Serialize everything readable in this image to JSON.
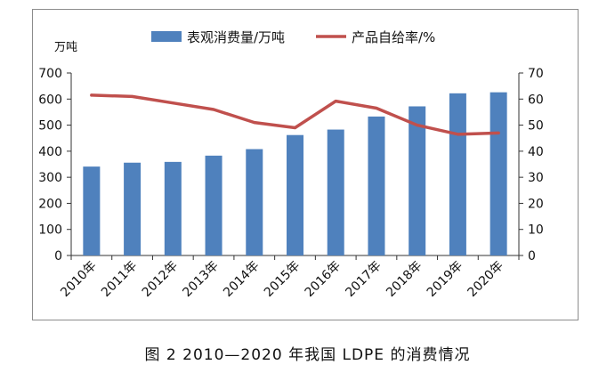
{
  "caption": "图 2   2010—2020 年我国 LDPE 的消费情况",
  "chart_data": {
    "type": "bar",
    "categories": [
      "2010年",
      "2011年",
      "2012年",
      "2013年",
      "2014年",
      "2015年",
      "2016年",
      "2017年",
      "2018年",
      "2019年",
      "2020年"
    ],
    "series": [
      {
        "name": "表观消费量/万吨",
        "type": "bar",
        "axis": "left",
        "color": "#4f81bd",
        "values": [
          341,
          356,
          359,
          383,
          408,
          462,
          483,
          533,
          572,
          622,
          626
        ]
      },
      {
        "name": "产品自给率/%",
        "type": "line",
        "axis": "right",
        "color": "#c0504d",
        "values": [
          61.5,
          61,
          58.5,
          56,
          51,
          49,
          59.2,
          56.5,
          50,
          46.5,
          47
        ]
      }
    ],
    "left_axis": {
      "label": "万吨",
      "ylim": [
        0,
        700
      ],
      "ticks": [
        "0",
        "100",
        "200",
        "300",
        "400",
        "500",
        "600",
        "700"
      ]
    },
    "right_axis": {
      "ylim": [
        0,
        70
      ],
      "ticks": [
        "0",
        "10",
        "20",
        "30",
        "40",
        "50",
        "60",
        "70"
      ]
    },
    "legend": "top",
    "grid": false
  }
}
